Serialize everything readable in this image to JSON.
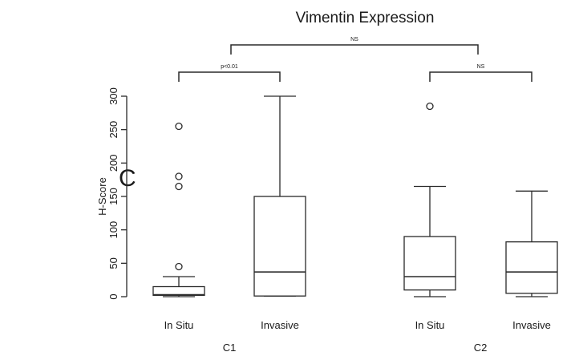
{
  "panel_label": "C",
  "chart_data": {
    "type": "box",
    "title": "Vimentin Expression",
    "ylabel": "H-Score",
    "xlabel": "",
    "ylim": [
      0,
      300
    ],
    "yticks": [
      0,
      50,
      100,
      150,
      200,
      250,
      300
    ],
    "groups": [
      "C1",
      "C2"
    ],
    "boxes": [
      {
        "category": "In Situ",
        "group": "C1",
        "min": 0,
        "q1": 2,
        "median": 3,
        "q3": 15,
        "max": 30,
        "outliers": [
          45,
          165,
          180,
          255
        ]
      },
      {
        "category": "Invasive",
        "group": "C1",
        "min": 1,
        "q1": 1,
        "median": 37,
        "q3": 150,
        "max": 300,
        "outliers": []
      },
      {
        "category": "In Situ",
        "group": "C2",
        "min": 0,
        "q1": 10,
        "median": 30,
        "q3": 90,
        "max": 165,
        "outliers": [
          285
        ]
      },
      {
        "category": "Invasive",
        "group": "C2",
        "min": 0,
        "q1": 5,
        "median": 37,
        "q3": 82,
        "max": 158,
        "outliers": []
      }
    ],
    "comparisons": [
      {
        "from": 0,
        "to": 1,
        "label": "p<0.01"
      },
      {
        "from": 2,
        "to": 3,
        "label": "NS"
      },
      {
        "from": 0,
        "to": 2,
        "label": "NS"
      }
    ],
    "grid": false,
    "legend": "none"
  }
}
